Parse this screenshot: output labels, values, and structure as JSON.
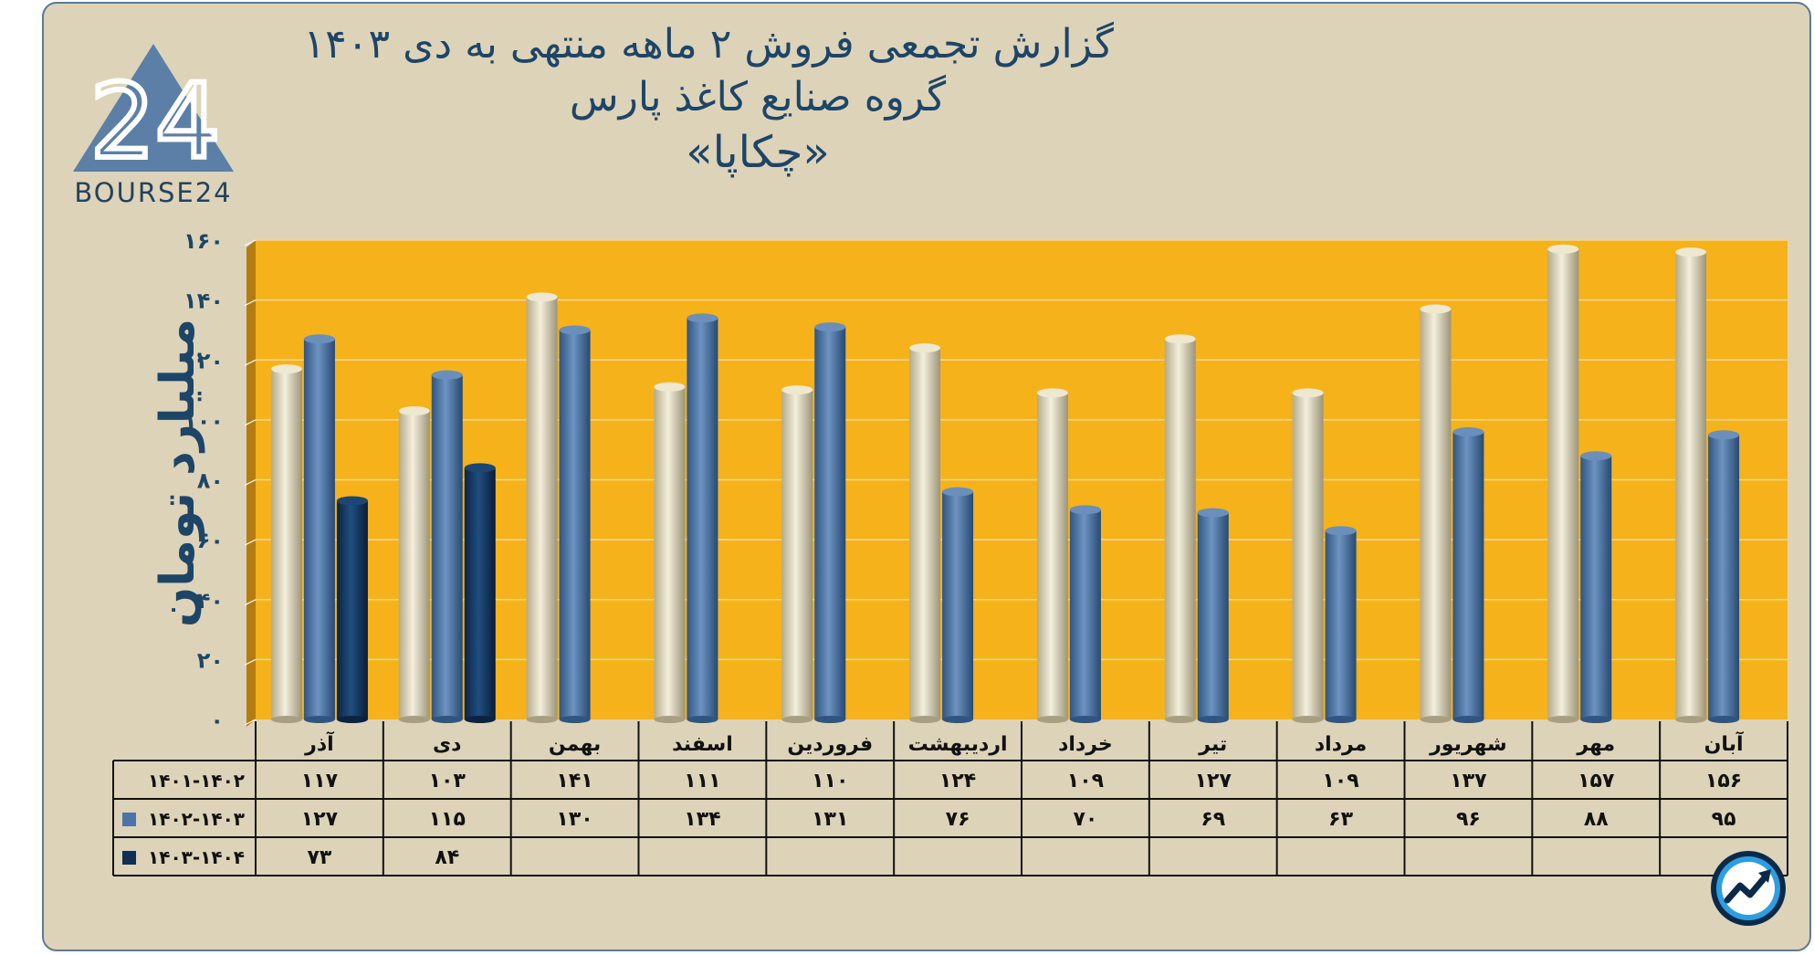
{
  "title": {
    "line1": "گزارش تجمعی فروش ۲ ماهه منتهی به دی ۱۴۰۳",
    "line2": "گروه صنایع کاغذ پارس",
    "line3": "«چکاپا»"
  },
  "logo": {
    "mark": "24",
    "text": "BOURSE24"
  },
  "icons": {
    "brand_logo": "triangle-24-logo-icon",
    "corner_badge": "trend-arrow-badge-icon"
  },
  "colors": {
    "background": "#ddd3b8",
    "plot_background": "#f5b21b",
    "series_1401_1402": "#ddd3b2",
    "series_1402_1403": "#4d74a4",
    "series_1403_1404": "#0f2f55",
    "text": "#1d4568"
  },
  "chart_data": {
    "type": "bar",
    "title": "",
    "xlabel": "",
    "ylabel": "میلیارد تومان",
    "ylim": [
      0,
      160
    ],
    "yticks": [
      0,
      20,
      40,
      60,
      80,
      100,
      120,
      140,
      160
    ],
    "ytick_labels": [
      "۰",
      "۲۰",
      "۴۰",
      "۶۰",
      "۸۰",
      "۱۰۰",
      "۱۲۰",
      "۱۴۰",
      "۱۶۰"
    ],
    "grid": true,
    "legend": "table-rows-left",
    "categories": [
      "آذر",
      "دی",
      "بهمن",
      "اسفند",
      "فروردین",
      "اردیبهشت",
      "خرداد",
      "تیر",
      "مرداد",
      "شهریور",
      "مهر",
      "آبان"
    ],
    "series": [
      {
        "name": "۱۴۰۱-۱۴۰۲",
        "values": [
          117,
          103,
          141,
          111,
          110,
          124,
          109,
          127,
          109,
          137,
          157,
          156
        ],
        "labels": [
          "۱۱۷",
          "۱۰۳",
          "۱۴۱",
          "۱۱۱",
          "۱۱۰",
          "۱۲۴",
          "۱۰۹",
          "۱۲۷",
          "۱۰۹",
          "۱۳۷",
          "۱۵۷",
          "۱۵۶"
        ]
      },
      {
        "name": "۱۴۰۲-۱۴۰۳",
        "values": [
          127,
          115,
          130,
          134,
          131,
          76,
          70,
          69,
          63,
          96,
          88,
          95
        ],
        "labels": [
          "۱۲۷",
          "۱۱۵",
          "۱۳۰",
          "۱۳۴",
          "۱۳۱",
          "۷۶",
          "۷۰",
          "۶۹",
          "۶۳",
          "۹۶",
          "۸۸",
          "۹۵"
        ]
      },
      {
        "name": "۱۴۰۳-۱۴۰۴",
        "values": [
          73,
          84,
          null,
          null,
          null,
          null,
          null,
          null,
          null,
          null,
          null,
          null
        ],
        "labels": [
          "۷۳",
          "۸۴",
          "",
          "",
          "",
          "",
          "",
          "",
          "",
          "",
          "",
          ""
        ]
      }
    ]
  }
}
